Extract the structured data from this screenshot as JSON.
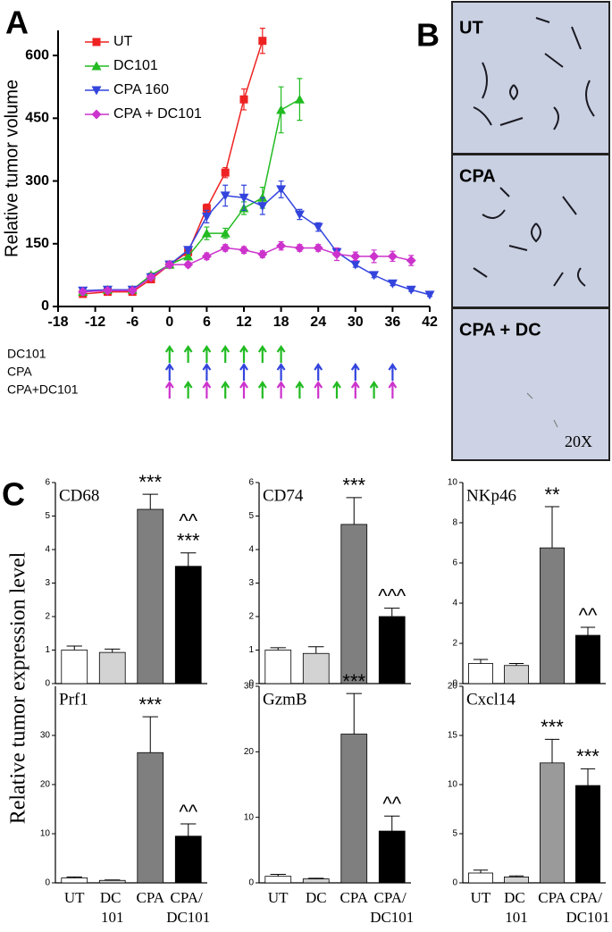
{
  "panel_labels": [
    "A",
    "B",
    "C"
  ],
  "micrographs": {
    "labels": [
      "UT",
      "CPA",
      "CPA + DC"
    ],
    "magnification": "20X"
  },
  "schedule": {
    "rows": [
      {
        "label": "DC101",
        "arrows": [
          {
            "color": "#22bb22",
            "days": [
              0,
              3,
              6,
              9,
              12,
              15,
              18
            ]
          }
        ]
      },
      {
        "label": "CPA",
        "arrows": [
          {
            "color": "#3344dd",
            "days": [
              0,
              6,
              12,
              18,
              24,
              30,
              36
            ]
          }
        ]
      },
      {
        "label": "CPA+DC101",
        "arrows": [
          {
            "color": "#cc33cc",
            "days": [
              0,
              6,
              12,
              18,
              24,
              30,
              36
            ]
          },
          {
            "color": "#22bb22",
            "days": [
              3,
              9,
              15,
              21,
              27,
              33
            ]
          }
        ]
      }
    ]
  },
  "shared_ylabel": "Relative tumor expression level",
  "chart_data": [
    {
      "type": "line",
      "ylabel": "Relative tumor volume",
      "xlim": [
        -18,
        42
      ],
      "ylim": [
        0,
        660
      ],
      "xticks": [
        -18,
        -12,
        -6,
        0,
        6,
        12,
        18,
        24,
        30,
        36,
        42
      ],
      "yticks": [
        0,
        150,
        300,
        450,
        600
      ],
      "series": [
        {
          "name": "UT",
          "color": "#ee2222",
          "marker": "square",
          "x": [
            -14,
            -10,
            -6,
            -3,
            0,
            3,
            6,
            9,
            12,
            15
          ],
          "values": [
            30,
            35,
            35,
            65,
            100,
            130,
            235,
            320,
            495,
            635
          ],
          "errors": [
            4,
            4,
            5,
            5,
            6,
            8,
            10,
            12,
            25,
            30
          ]
        },
        {
          "name": "DC101",
          "color": "#22bb22",
          "marker": "triangle",
          "x": [
            -14,
            -10,
            -6,
            -3,
            0,
            3,
            6,
            9,
            12,
            15,
            18,
            21
          ],
          "values": [
            35,
            40,
            40,
            75,
            100,
            120,
            175,
            175,
            235,
            260,
            470,
            495
          ],
          "errors": [
            4,
            4,
            5,
            5,
            6,
            8,
            15,
            12,
            15,
            25,
            55,
            50
          ]
        },
        {
          "name": "CPA 160",
          "color": "#3344dd",
          "marker": "triangle-down",
          "x": [
            -14,
            -10,
            -6,
            -3,
            0,
            3,
            6,
            9,
            12,
            15,
            18,
            21,
            24,
            27,
            30,
            33,
            36,
            39,
            42
          ],
          "values": [
            38,
            40,
            40,
            70,
            100,
            135,
            215,
            265,
            260,
            240,
            280,
            220,
            190,
            130,
            100,
            75,
            55,
            40,
            28
          ],
          "errors": [
            4,
            4,
            5,
            5,
            6,
            8,
            15,
            25,
            30,
            20,
            20,
            12,
            10,
            8,
            6,
            6,
            5,
            4,
            4
          ]
        },
        {
          "name": "CPA + DC101",
          "color": "#cc33cc",
          "marker": "diamond",
          "x": [
            -14,
            -10,
            -6,
            -3,
            0,
            3,
            6,
            9,
            12,
            15,
            18,
            21,
            24,
            27,
            30,
            33,
            36,
            39
          ],
          "values": [
            35,
            38,
            38,
            70,
            100,
            100,
            120,
            140,
            135,
            125,
            145,
            140,
            140,
            125,
            120,
            120,
            120,
            110
          ],
          "errors": [
            4,
            4,
            5,
            5,
            6,
            6,
            8,
            8,
            8,
            8,
            10,
            8,
            8,
            15,
            10,
            15,
            12,
            12
          ]
        }
      ]
    },
    {
      "type": "bar",
      "title": "CD68",
      "ylim": [
        0,
        6
      ],
      "yticks": [
        0,
        1,
        2,
        3,
        4,
        5,
        6
      ],
      "colors": [
        "#ffffff",
        "#d3d3d3",
        "#7f7f7f",
        "#000000"
      ],
      "values": [
        1.0,
        0.93,
        5.2,
        3.5
      ],
      "errors": [
        0.12,
        0.1,
        0.45,
        0.4
      ],
      "annotations": [
        [],
        [],
        [
          "***"
        ],
        [
          "^^",
          "***"
        ]
      ]
    },
    {
      "type": "bar",
      "title": "CD74",
      "ylim": [
        0,
        6
      ],
      "yticks": [
        0,
        1,
        2,
        3,
        4,
        5,
        6
      ],
      "colors": [
        "#ffffff",
        "#d3d3d3",
        "#7f7f7f",
        "#000000"
      ],
      "values": [
        1.0,
        0.9,
        4.75,
        2.0
      ],
      "errors": [
        0.07,
        0.2,
        0.8,
        0.25
      ],
      "annotations": [
        [],
        [],
        [
          "***"
        ],
        [
          "^^^"
        ]
      ]
    },
    {
      "type": "bar",
      "title": "NKp46",
      "ylim": [
        0,
        10
      ],
      "yticks": [
        0,
        2,
        4,
        6,
        8,
        10
      ],
      "colors": [
        "#ffffff",
        "#d3d3d3",
        "#7f7f7f",
        "#000000"
      ],
      "values": [
        1.0,
        0.9,
        6.75,
        2.4
      ],
      "errors": [
        0.2,
        0.1,
        2.05,
        0.4
      ],
      "annotations": [
        [],
        [],
        [
          "**"
        ],
        [
          "^^"
        ]
      ]
    },
    {
      "type": "bar",
      "title": "Prf1",
      "ylim": [
        0,
        40
      ],
      "yticks": [
        0,
        10,
        20,
        30
      ],
      "colors": [
        "#ffffff",
        "#d3d3d3",
        "#7f7f7f",
        "#000000"
      ],
      "categories": [
        "UT",
        "DC 101",
        "CPA",
        "CPA/ DC101"
      ],
      "values": [
        1.0,
        0.5,
        26.5,
        9.5
      ],
      "errors": [
        0.2,
        0.1,
        7.3,
        2.5
      ],
      "annotations": [
        [],
        [],
        [
          "***"
        ],
        [
          "^^"
        ]
      ]
    },
    {
      "type": "bar",
      "title": "GzmB",
      "ylim": [
        0,
        30
      ],
      "yticks": [
        0,
        10,
        20,
        30
      ],
      "colors": [
        "#ffffff",
        "#d3d3d3",
        "#7f7f7f",
        "#000000"
      ],
      "categories": [
        "UT",
        "DC",
        "CPA",
        "CPA/ DC101"
      ],
      "values": [
        1.0,
        0.6,
        22.7,
        7.9
      ],
      "errors": [
        0.3,
        0.1,
        6.2,
        2.3
      ],
      "annotations": [
        [],
        [],
        [
          "***"
        ],
        [
          "^^"
        ]
      ]
    },
    {
      "type": "bar",
      "title": "Cxcl14",
      "ylim": [
        0,
        20
      ],
      "yticks": [
        0,
        5,
        10,
        15,
        20
      ],
      "colors": [
        "#ffffff",
        "#d3d3d3",
        "#9a9a9a",
        "#000000"
      ],
      "categories": [
        "UT",
        "DC 101",
        "CPA",
        "CPA/ DC101"
      ],
      "values": [
        1.0,
        0.6,
        12.2,
        9.9
      ],
      "errors": [
        0.3,
        0.1,
        2.4,
        1.7
      ],
      "annotations": [
        [],
        [],
        [
          "***"
        ],
        [
          "***"
        ]
      ]
    }
  ]
}
